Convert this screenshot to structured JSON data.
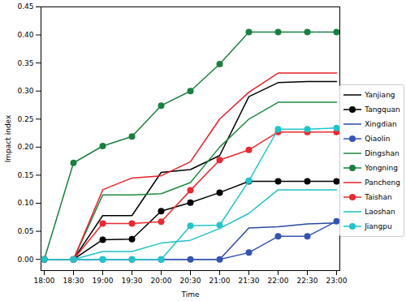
{
  "chart_data": {
    "type": "line",
    "x_label": "Time",
    "y_label": "Impact index",
    "categories": [
      "18:00",
      "18:30",
      "19:00",
      "19:30",
      "20:00",
      "20:30",
      "21:00",
      "21:30",
      "22:00",
      "22:30",
      "23:00"
    ],
    "ylim": [
      -0.02,
      0.45
    ],
    "yticks": [
      {
        "value": 0,
        "label": "0.00"
      },
      {
        "value": 0.05,
        "label": "0.05"
      },
      {
        "value": 0.1,
        "label": "0.10"
      },
      {
        "value": 0.15,
        "label": "0.15"
      },
      {
        "value": 0.2,
        "label": "0.20"
      },
      {
        "value": 0.25,
        "label": "0.25"
      },
      {
        "value": 0.3,
        "label": "0.30"
      },
      {
        "value": 0.35,
        "label": "0.35"
      },
      {
        "value": 0.4,
        "label": "0.40"
      },
      {
        "value": 0.45,
        "label": "0.45"
      }
    ],
    "grid": false,
    "legend": "right",
    "series": [
      {
        "name": "Yanjiang",
        "color": "#000000",
        "marker": "none",
        "values": [
          0,
          0,
          0.078,
          0.078,
          0.155,
          0.16,
          0.185,
          0.29,
          0.315,
          0.317,
          0.317
        ]
      },
      {
        "name": "Tangquan",
        "color": "#000000",
        "marker": "circle",
        "values": [
          0,
          0,
          0.035,
          0.036,
          0.086,
          0.101,
          0.119,
          0.139,
          0.139,
          0.139,
          0.139
        ]
      },
      {
        "name": "Xingdian",
        "color": "#2c4a9e",
        "marker": "none",
        "values": [
          0,
          0,
          0,
          0,
          0,
          0,
          0,
          0.056,
          0.058,
          0.063,
          0.065
        ]
      },
      {
        "name": "Qiaolin",
        "color": "#3454b0",
        "marker": "circle",
        "values": [
          0,
          0,
          0,
          0,
          0,
          0,
          0,
          0.012,
          0.041,
          0.041,
          0.068
        ]
      },
      {
        "name": "Dingshan",
        "color": "#1e8a3e",
        "marker": "none",
        "values": [
          0,
          0,
          0.115,
          0.115,
          0.117,
          0.137,
          0.2,
          0.25,
          0.28,
          0.28,
          0.28
        ]
      },
      {
        "name": "Yongning",
        "color": "#1a8040",
        "marker": "circle",
        "values": [
          0,
          0.172,
          0.202,
          0.219,
          0.274,
          0.3,
          0.348,
          0.405,
          0.405,
          0.405,
          0.405
        ]
      },
      {
        "name": "Pancheng",
        "color": "#e8202a",
        "marker": "none",
        "values": [
          0,
          0,
          0.124,
          0.145,
          0.149,
          0.174,
          0.25,
          0.298,
          0.332,
          0.332,
          0.332
        ]
      },
      {
        "name": "Taishan",
        "color": "#ea2a30",
        "marker": "circle",
        "values": [
          0,
          0,
          0.064,
          0.064,
          0.067,
          0.123,
          0.177,
          0.195,
          0.227,
          0.227,
          0.227
        ]
      },
      {
        "name": "Laoshan",
        "color": "#1fc0c8",
        "marker": "none",
        "values": [
          0,
          0,
          0.014,
          0.014,
          0.029,
          0.034,
          0.055,
          0.082,
          0.124,
          0.124,
          0.124
        ]
      },
      {
        "name": "Jiangpu",
        "color": "#22c4cc",
        "marker": "circle",
        "values": [
          0,
          0,
          0,
          0,
          0,
          0.06,
          0.061,
          0.14,
          0.232,
          0.232,
          0.234
        ]
      }
    ]
  }
}
